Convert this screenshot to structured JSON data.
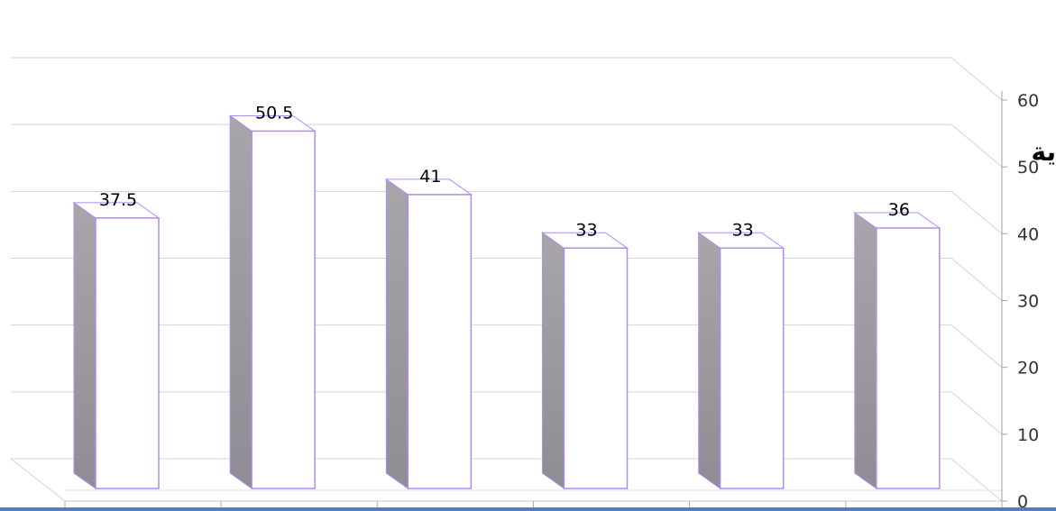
{
  "chart_data": {
    "type": "bar",
    "style": "3d-column",
    "categories": [
      "",
      "",
      "",
      "",
      "",
      ""
    ],
    "values": [
      37.5,
      50.5,
      41,
      33,
      33,
      36
    ],
    "data_labels": [
      "37.5",
      "50.5",
      "41",
      "33",
      "33",
      "36"
    ],
    "title": "",
    "ylabel": "",
    "ylabel_fragment": "ية",
    "ylim": [
      0,
      60
    ],
    "yticks": [
      "0",
      "10",
      "20",
      "30",
      "40",
      "50",
      "60"
    ],
    "grid": true,
    "axis_position": "right",
    "colors": {
      "bar_front": "#ffffff",
      "bar_outline": "#b18cf0",
      "bar_side": "#9a979c",
      "grid": "#d4d4d4",
      "text": "#000000",
      "bottom_edge": "#4f81bd"
    }
  }
}
